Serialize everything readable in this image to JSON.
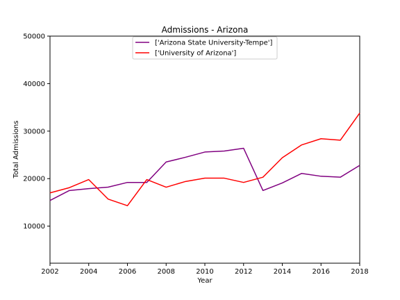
{
  "chart_data": {
    "type": "line",
    "title": "Admissions - Arizona",
    "xlabel": "Year",
    "ylabel": "Total Admissions",
    "xlim": [
      2002,
      2018
    ],
    "ylim": [
      2200,
      50000
    ],
    "xticks": [
      2002,
      2004,
      2006,
      2008,
      2010,
      2012,
      2014,
      2016,
      2018
    ],
    "yticks": [
      10000,
      20000,
      30000,
      40000,
      50000
    ],
    "grid": false,
    "legend_position": "top-center",
    "x": [
      2002,
      2003,
      2004,
      2005,
      2006,
      2007,
      2008,
      2009,
      2010,
      2011,
      2012,
      2013,
      2014,
      2015,
      2016,
      2017,
      2018
    ],
    "series": [
      {
        "name": "['Arizona State University-Tempe']",
        "color": "#800080",
        "values": [
          15400,
          17500,
          17900,
          18200,
          19200,
          19200,
          23500,
          24500,
          25600,
          25800,
          26400,
          17500,
          19100,
          21100,
          20500,
          20300,
          22800
        ]
      },
      {
        "name": "['University of Arizona']",
        "color": "#ff0000",
        "values": [
          17000,
          18100,
          19800,
          15700,
          14300,
          19800,
          18200,
          19400,
          20100,
          20100,
          19200,
          20300,
          24400,
          27100,
          28400,
          28100,
          33800
        ]
      }
    ]
  }
}
